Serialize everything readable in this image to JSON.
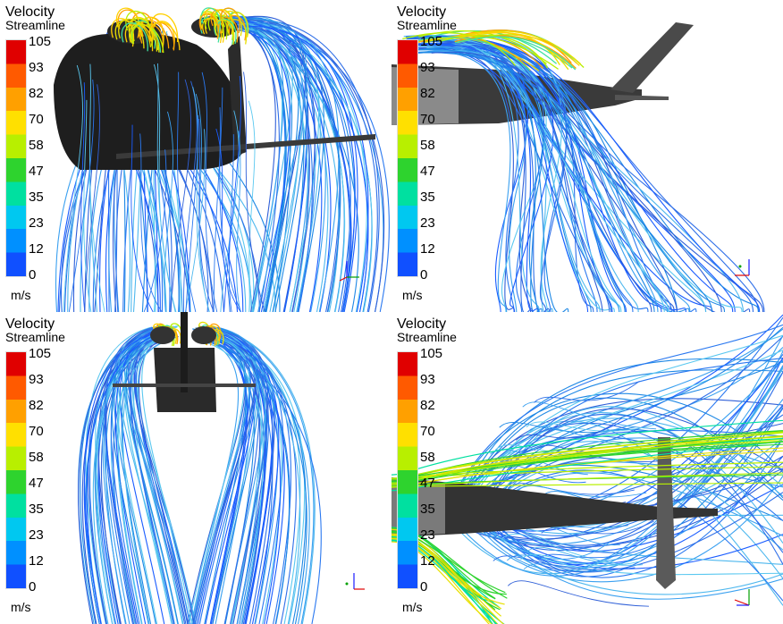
{
  "legend": {
    "title": "Velocity",
    "subtitle": "Streamline",
    "ticks": [
      "105",
      "93",
      "82",
      "70",
      "58",
      "47",
      "35",
      "23",
      "12",
      "0"
    ],
    "unit": "m/s",
    "colors": [
      "#e00000",
      "#ff5a00",
      "#ffa000",
      "#ffe000",
      "#b8ef00",
      "#2ed32e",
      "#00e0a0",
      "#00c8f0",
      "#0090ff",
      "#1050ff"
    ]
  },
  "panels": [
    {
      "view": "isometric"
    },
    {
      "view": "side"
    },
    {
      "view": "front"
    },
    {
      "view": "top"
    }
  ]
}
